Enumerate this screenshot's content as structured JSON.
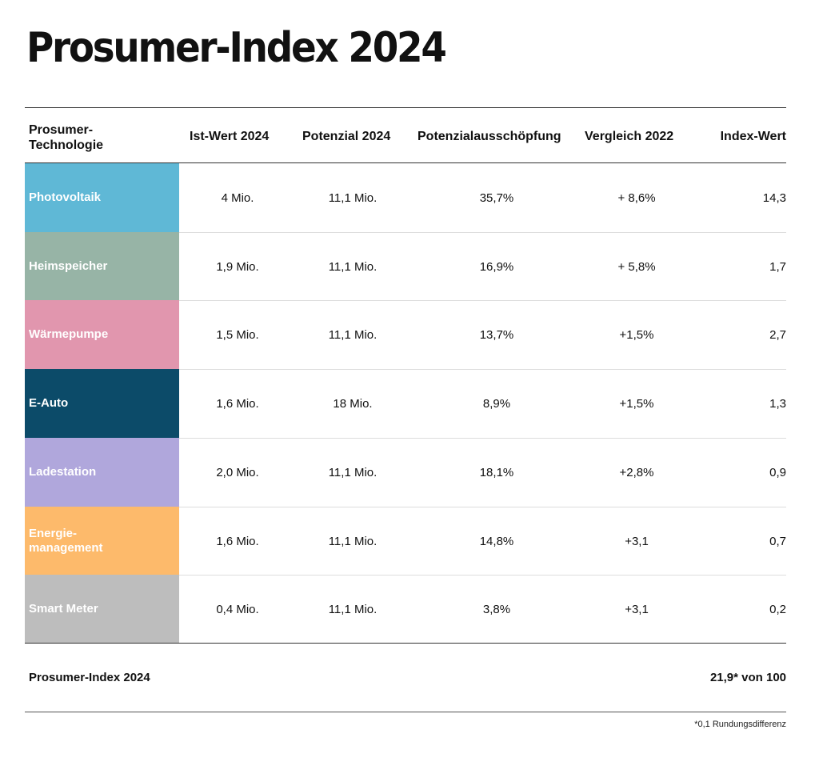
{
  "title": "Prosumer-Index 2024",
  "chart_data": {
    "type": "table",
    "title": "Prosumer-Index 2024",
    "columns": [
      "Prosumer-\nTechnologie",
      "Ist-Wert 2024",
      "Potenzial 2024",
      "Potenzialausschöpfung",
      "Vergleich 2022",
      "Index-Wert"
    ],
    "rows": [
      {
        "technology": "Photovoltaik",
        "color": "#5fb8d6",
        "ist": "4 Mio.",
        "potenzial": "11,1 Mio.",
        "ausschoepfung": "35,7%",
        "vergleich": "+ 8,6%",
        "index": "14,3"
      },
      {
        "technology": "Heimspeicher",
        "color": "#97b4a6",
        "ist": "1,9 Mio.",
        "potenzial": "11,1 Mio.",
        "ausschoepfung": "16,9%",
        "vergleich": "+ 5,8%",
        "index": "1,7"
      },
      {
        "technology": "Wärmepumpe",
        "color": "#e196ae",
        "ist": "1,5 Mio.",
        "potenzial": "11,1 Mio.",
        "ausschoepfung": "13,7%",
        "vergleich": "+1,5%",
        "index": "2,7"
      },
      {
        "technology": "E-Auto",
        "color": "#0c4b69",
        "ist": "1,6 Mio.",
        "potenzial": "18 Mio.",
        "ausschoepfung": "8,9%",
        "vergleich": "+1,5%",
        "index": "1,3"
      },
      {
        "technology": "Ladestation",
        "color": "#b0a7dc",
        "ist": "2,0 Mio.",
        "potenzial": "11,1 Mio.",
        "ausschoepfung": "18,1%",
        "vergleich": "+2,8%",
        "index": "0,9"
      },
      {
        "technology": "Energie-\nmanagement",
        "color": "#fdba6b",
        "ist": "1,6 Mio.",
        "potenzial": "11,1 Mio.",
        "ausschoepfung": "14,8%",
        "vergleich": "+3,1",
        "index": "0,7"
      },
      {
        "technology": "Smart Meter",
        "color": "#bdbdbd",
        "ist": "0,4 Mio.",
        "potenzial": "11,1 Mio.",
        "ausschoepfung": "3,8%",
        "vergleich": "+3,1",
        "index": "0,2"
      }
    ],
    "summary": {
      "label": "Prosumer-Index 2024",
      "value": "21,9* von 100"
    },
    "footnote": "*0,1 Rundungsdifferenz"
  }
}
